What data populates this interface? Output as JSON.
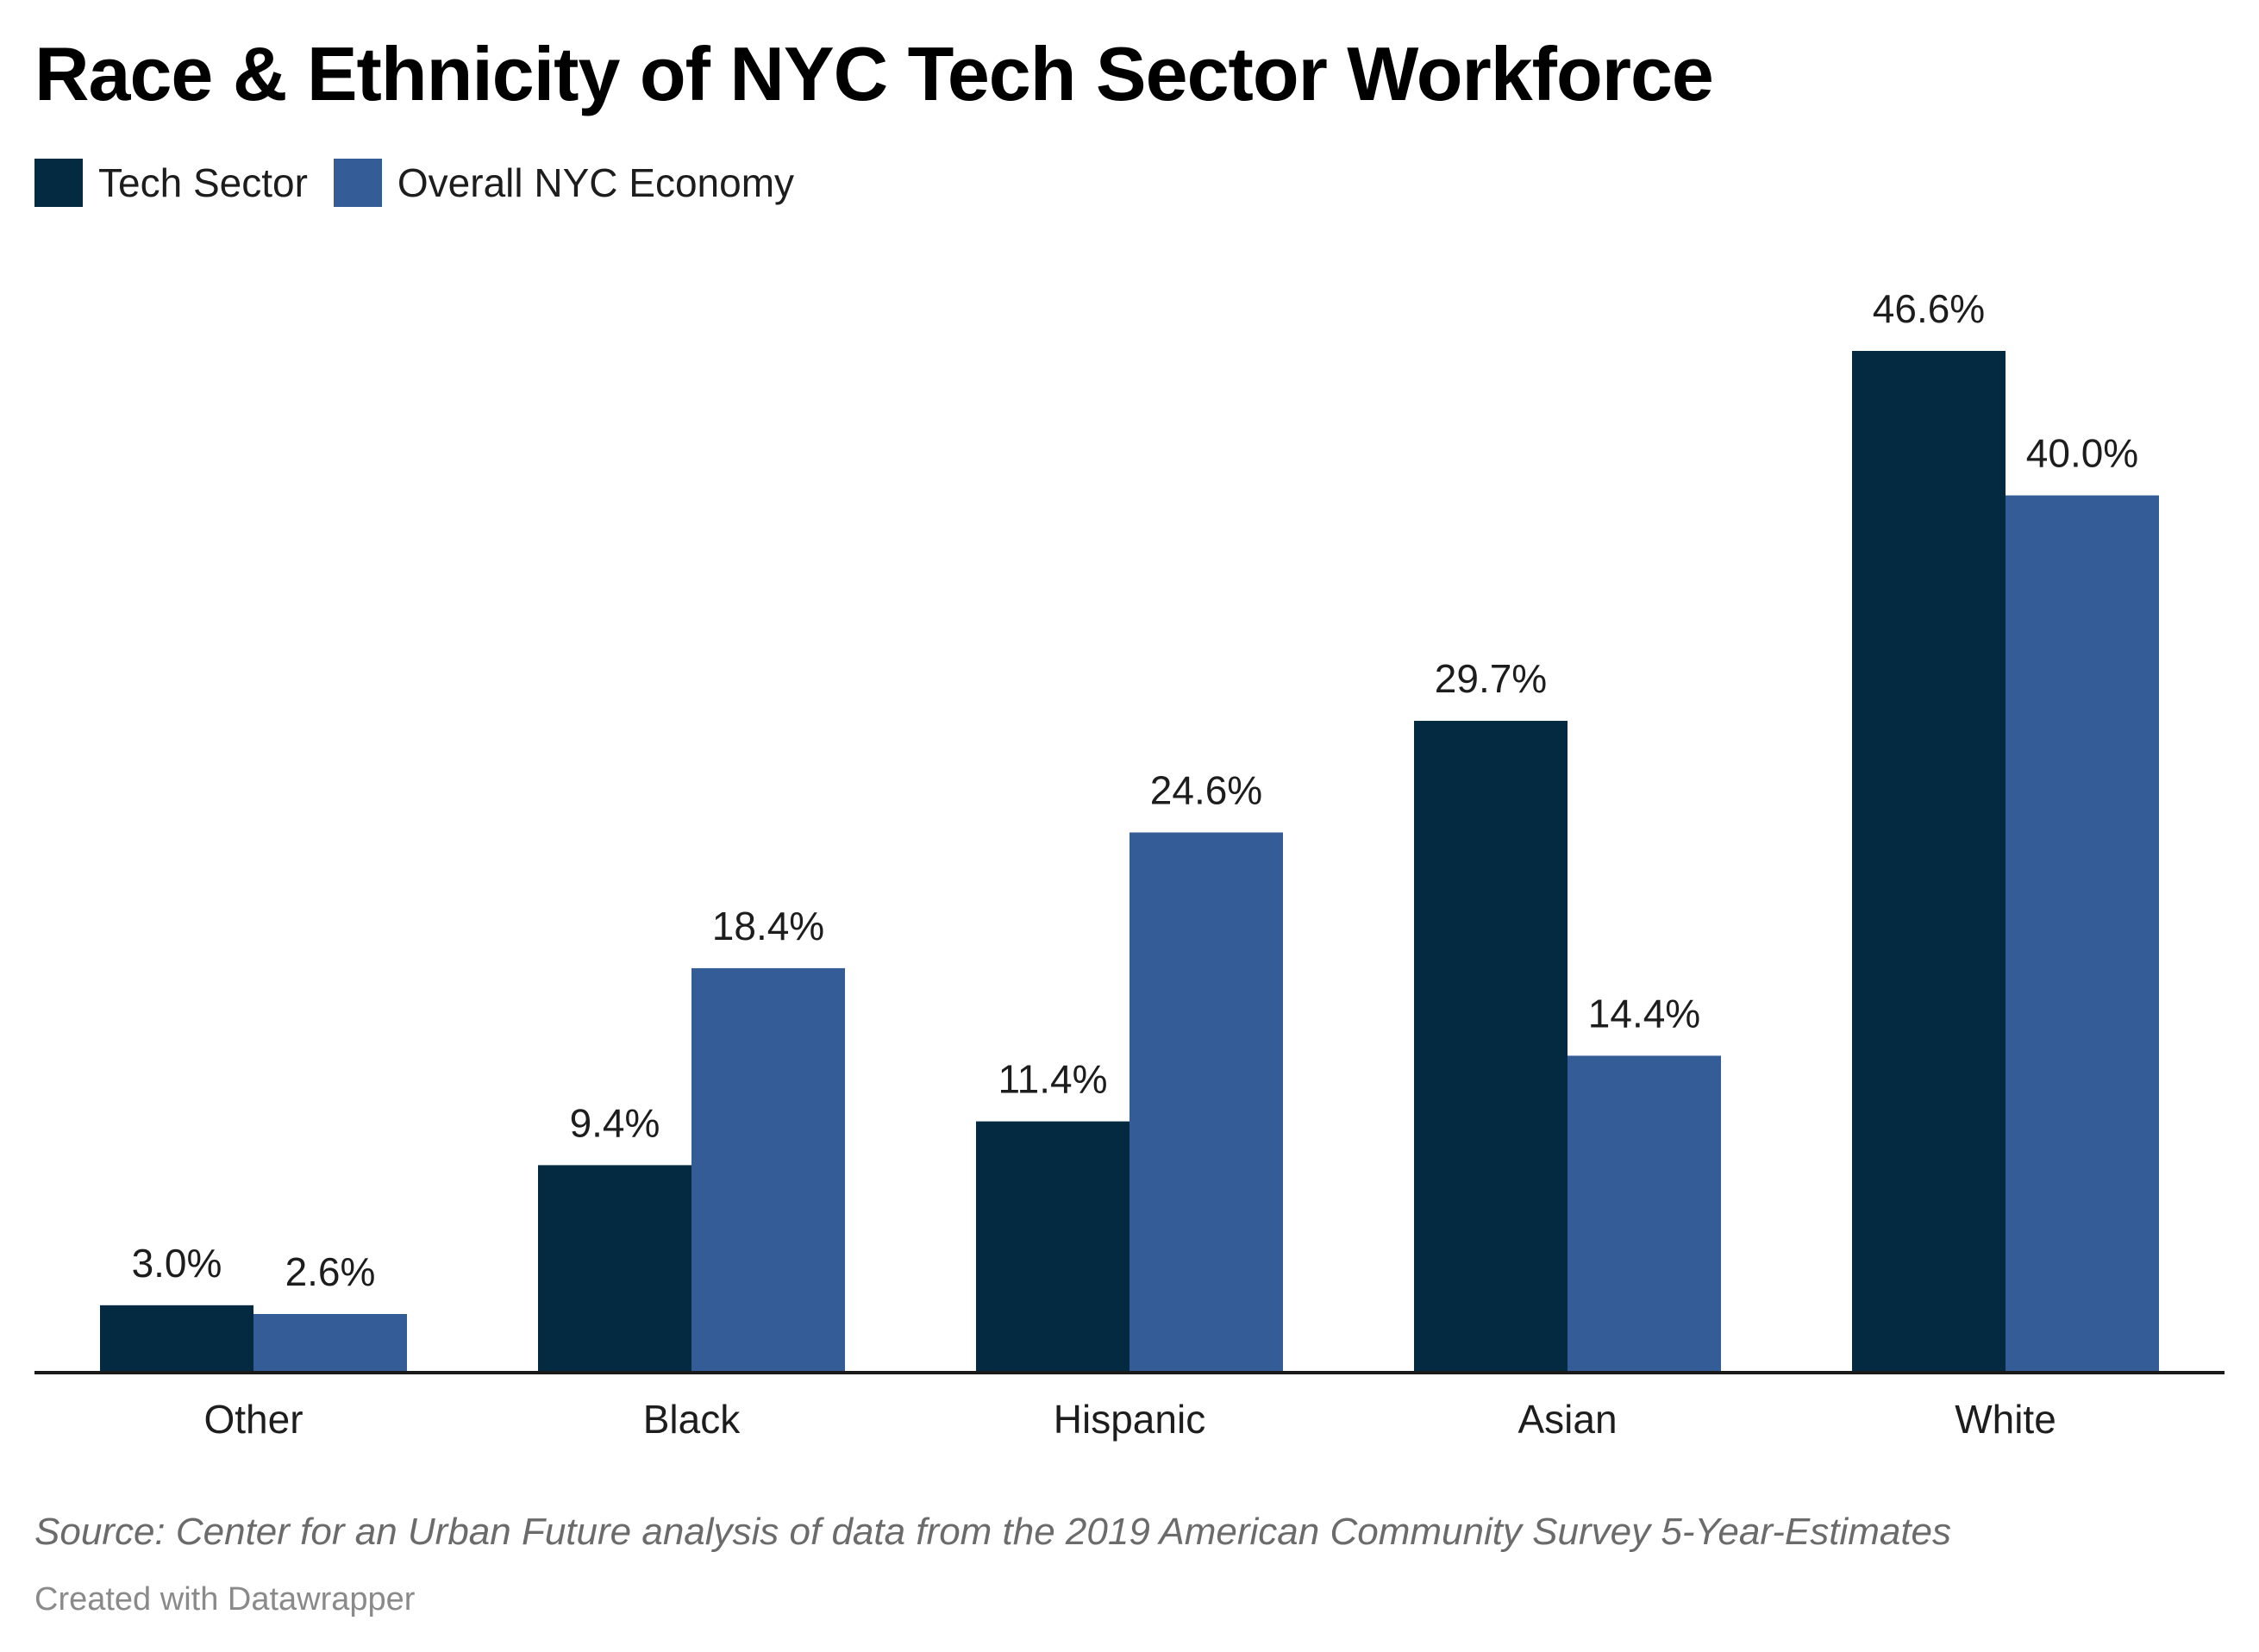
{
  "chart_data": {
    "type": "bar",
    "title": "Race & Ethnicity of NYC Tech Sector Workforce",
    "xlabel": "",
    "ylabel": "",
    "ylim": [
      0,
      46.6
    ],
    "grid": false,
    "legend_position": "top-left",
    "categories": [
      "Other",
      "Black",
      "Hispanic",
      "Asian",
      "White"
    ],
    "series": [
      {
        "name": "Tech Sector",
        "color": "#032a41",
        "values": [
          3.0,
          9.4,
          11.4,
          29.7,
          46.6
        ],
        "labels": [
          "3.0%",
          "9.4%",
          "11.4%",
          "29.7%",
          "46.6%"
        ]
      },
      {
        "name": "Overall NYC Economy",
        "color": "#345c96",
        "values": [
          2.6,
          18.4,
          24.6,
          14.4,
          40.0
        ],
        "labels": [
          "2.6%",
          "18.4%",
          "24.6%",
          "14.4%",
          "40.0%"
        ]
      }
    ],
    "source": "Source: Center for an Urban Future analysis of data from the 2019 American Community Survey 5-Year-Estimates",
    "credit": "Created with Datawrapper"
  },
  "colors": {
    "axis": "#1a1a1a",
    "label_text": "#1d1d1d"
  }
}
